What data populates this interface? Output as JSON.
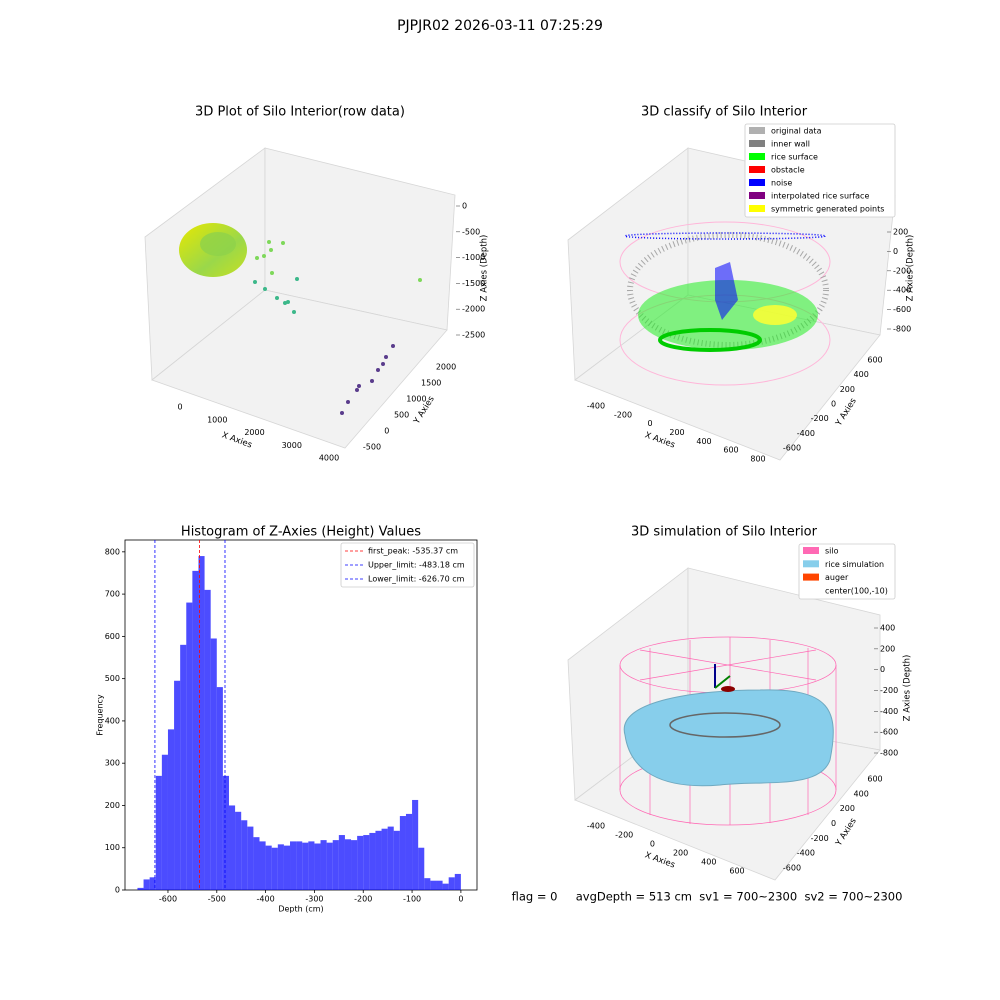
{
  "suptitle": "PJPJR02 2026-03-11 07:25:29",
  "footer": "flag = 0     avgDepth = 513 cm  sv1 = 700~2300  sv2 = 700~2300",
  "chart_data": [
    {
      "type": "scatter3d",
      "title": "3D Plot of Silo Interior(row data)",
      "xlabel": "X Axies",
      "ylabel": "Y Axies",
      "zlabel": "Z Axies (Depth)",
      "xticks": [
        0,
        1000,
        2000,
        3000,
        4000
      ],
      "yticks": [
        -500,
        0,
        500,
        1000,
        1500,
        2000
      ],
      "zticks": [
        0,
        -500,
        -1000,
        -1500,
        -2000,
        -2500
      ]
    },
    {
      "type": "scatter3d",
      "title": "3D classify of Silo Interior",
      "xlabel": "X Axies",
      "ylabel": "Y Axies",
      "zlabel": "Z Axies (Depth)",
      "xticks": [
        -400,
        -200,
        0,
        200,
        400,
        600,
        800
      ],
      "yticks": [
        -600,
        -400,
        -200,
        0,
        200,
        400,
        600
      ],
      "zticks": [
        200,
        0,
        -200,
        -400,
        -600,
        -800
      ],
      "legend": [
        {
          "name": "original data",
          "color": "#b0b0b0"
        },
        {
          "name": "inner wall",
          "color": "#808080"
        },
        {
          "name": "rice surface",
          "color": "#00ff00"
        },
        {
          "name": "obstacle",
          "color": "#ff0000"
        },
        {
          "name": "noise",
          "color": "#0000ff"
        },
        {
          "name": "interpolated rice surface",
          "color": "#800080"
        },
        {
          "name": "symmetric generated points",
          "color": "#ffff00"
        }
      ]
    },
    {
      "type": "histogram",
      "title": "Histogram of Z-Axies (Height) Values",
      "xlabel": "Depth (cm)",
      "ylabel": "Frequency",
      "color": "#0000ff",
      "bins": [
        -662.5,
        -650,
        -637.5,
        -625,
        -612.5,
        -600,
        -587.5,
        -575,
        -562.5,
        -550,
        -537.5,
        -525,
        -512.5,
        -500,
        -487.5,
        -475,
        -462.5,
        -450,
        -437.5,
        -425,
        -412.5,
        -400,
        -387.5,
        -375,
        -362.5,
        -350,
        -337.5,
        -325,
        -312.5,
        -300,
        -287.5,
        -275,
        -262.5,
        -250,
        -237.5,
        -225,
        -212.5,
        -200,
        -187.5,
        -175,
        -162.5,
        -150,
        -137.5,
        -125,
        -112.5,
        -100,
        -87.5,
        -75,
        -62.5,
        -50,
        -37.5,
        -25,
        -12.5,
        0
      ],
      "values": [
        5,
        25,
        30,
        270,
        320,
        380,
        495,
        580,
        680,
        755,
        790,
        710,
        595,
        480,
        270,
        200,
        185,
        165,
        150,
        125,
        115,
        105,
        100,
        108,
        105,
        115,
        115,
        112,
        115,
        110,
        118,
        112,
        118,
        130,
        120,
        118,
        128,
        130,
        135,
        140,
        145,
        150,
        140,
        175,
        180,
        213,
        100,
        28,
        22,
        22,
        15,
        30,
        38
      ],
      "xlim": [
        -688,
        33
      ],
      "ylim": [
        0,
        828
      ],
      "xticks": [
        -600,
        -500,
        -400,
        -300,
        -200,
        -100,
        0
      ],
      "yticks": [
        0,
        100,
        200,
        300,
        400,
        500,
        600,
        700,
        800
      ],
      "vlines": [
        {
          "value": -535.37,
          "label": "first_peak: -535.37 cm",
          "color": "#ff0000"
        },
        {
          "value": -483.18,
          "label": "Upper_limit: -483.18 cm",
          "color": "#0000ff"
        },
        {
          "value": -626.7,
          "label": "Lower_limit: -626.70 cm",
          "color": "#0000ff"
        }
      ]
    },
    {
      "type": "scatter3d",
      "title": "3D simulation of Silo Interior",
      "xlabel": "X Axies",
      "ylabel": "Y Axies",
      "zlabel": "Z Axies (Depth)",
      "xticks": [
        -400,
        -200,
        0,
        200,
        400,
        600
      ],
      "yticks": [
        -600,
        -400,
        -200,
        0,
        200,
        400,
        600
      ],
      "zticks": [
        400,
        200,
        0,
        -200,
        -400,
        -600,
        -800
      ],
      "legend": [
        {
          "name": "silo",
          "color": "#ff69b4"
        },
        {
          "name": "rice simulation",
          "color": "#87ceeb"
        },
        {
          "name": "auger",
          "color": "#ff4500"
        },
        {
          "name": "center(100,-10)"
        }
      ]
    }
  ]
}
